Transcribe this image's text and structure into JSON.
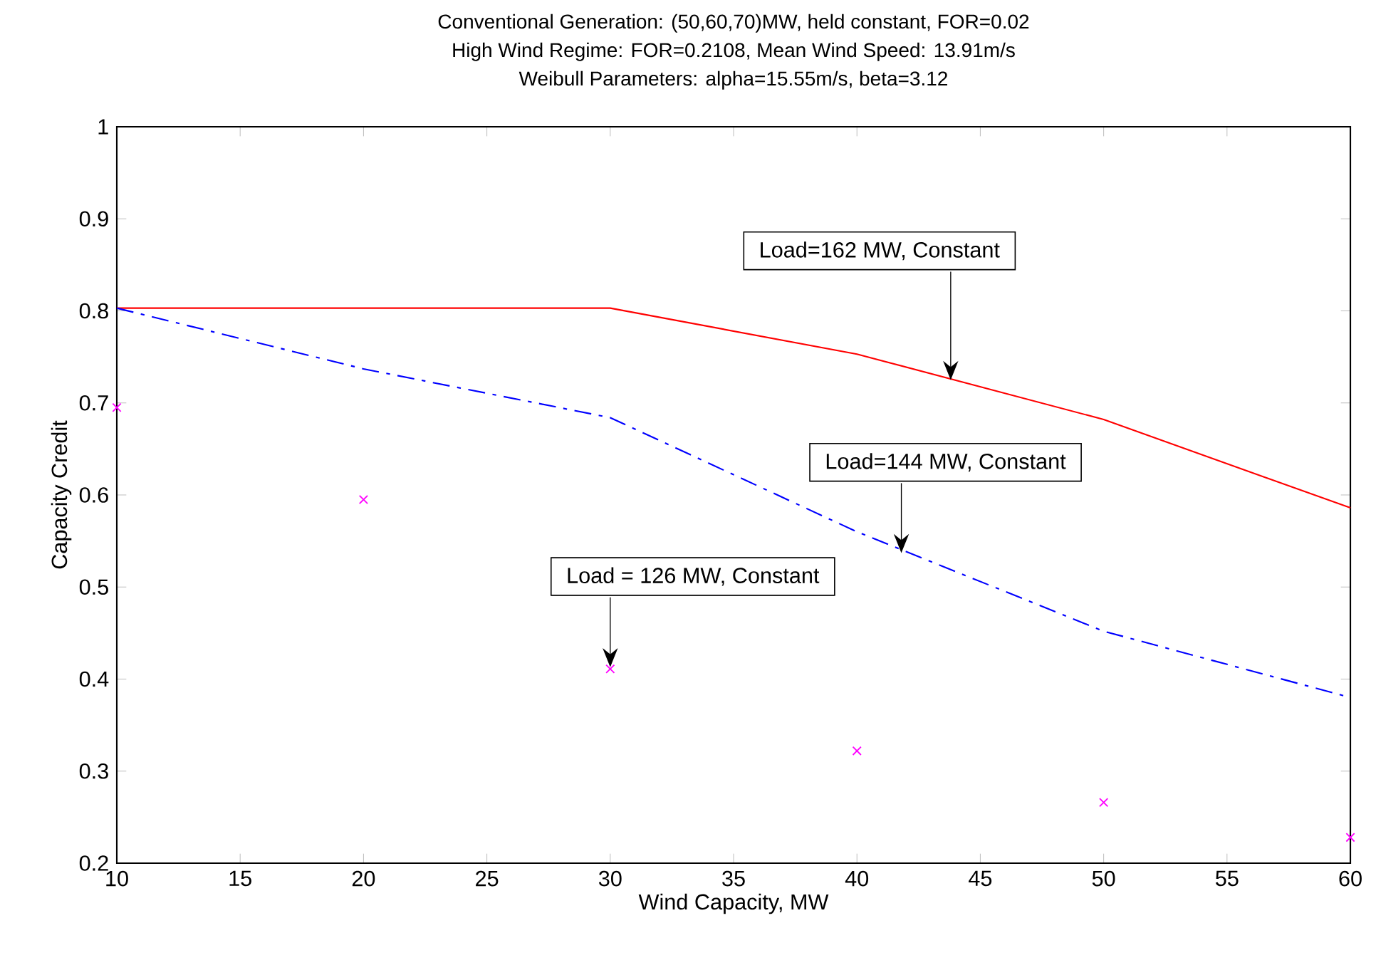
{
  "chart_data": {
    "type": "line",
    "title": "Conventional Generation: (50,60,70)MW, held constant, FOR=0.02",
    "subtitle": [
      "High Wind Regime: FOR=0.2108, Mean Wind Speed: 13.91m/s",
      "Weibull Parameters: alpha=15.55m/s, beta=3.12"
    ],
    "xlabel": "Wind Capacity, MW",
    "ylabel": "Capacity Credit",
    "x": [
      10,
      20,
      30,
      40,
      50,
      60
    ],
    "series": [
      {
        "color": "#ff0000",
        "line_style": "solid",
        "values": [
          0.803,
          0.803,
          0.803,
          0.753,
          0.682,
          0.586
        ]
      },
      {
        "color": "#0000ff",
        "line_style": "dashdot",
        "values": [
          0.803,
          0.737,
          0.684,
          0.56,
          0.452,
          0.38
        ]
      },
      {
        "type": "scatter",
        "color": "#ff00ff",
        "marker": "cross",
        "values": [
          0.695,
          0.595,
          0.411,
          0.322,
          0.266,
          0.228
        ]
      }
    ],
    "xlim": [
      10,
      60
    ],
    "ylim": [
      0.2,
      1
    ],
    "xticks": [
      10,
      15,
      20,
      25,
      30,
      35,
      40,
      45,
      50,
      55,
      60
    ],
    "yticks": [
      0.2,
      0.3,
      0.4,
      0.5,
      0.6,
      0.7,
      0.8,
      0.9,
      1
    ],
    "annotations": [
      {
        "text": "Load=162 MW, Constant",
        "x": 43.8,
        "y": 0.725
      },
      {
        "text": "Load=144 MW, Constant",
        "x": 41.8,
        "y": 0.537
      },
      {
        "text": "Load = 126 MW, Constant",
        "x": 30,
        "y": 0.413
      }
    ]
  }
}
